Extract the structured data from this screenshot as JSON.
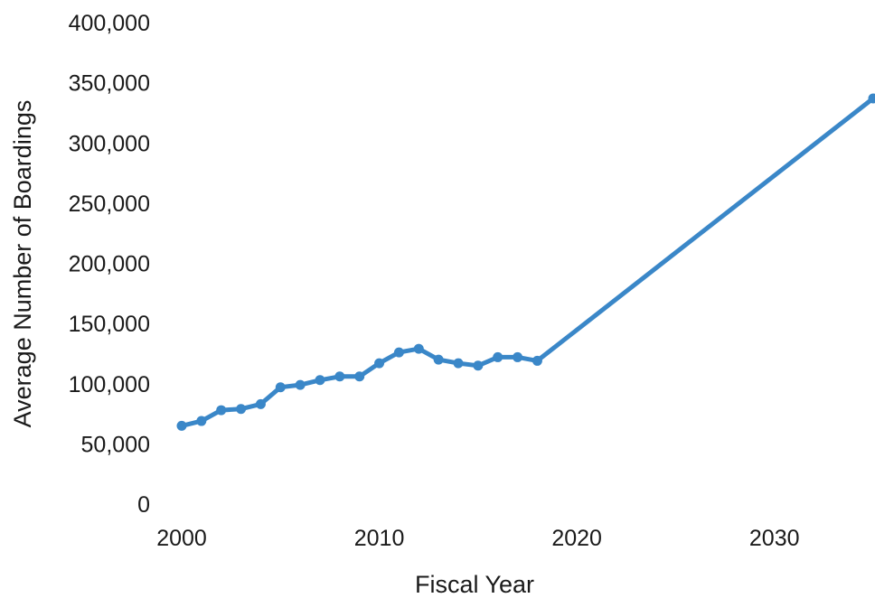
{
  "chart_data": {
    "type": "line",
    "title": "",
    "xlabel": "Fiscal Year",
    "ylabel": "Average Number of Boardings",
    "xlim": [
      2000,
      2035
    ],
    "ylim": [
      0,
      400000
    ],
    "grid": false,
    "legend": "none",
    "line_color": "#3a87c8",
    "x_ticks": [
      2000,
      2010,
      2020,
      2030
    ],
    "x_tick_labels": [
      "2000",
      "2010",
      "2020",
      "2030"
    ],
    "y_ticks": [
      0,
      50000,
      100000,
      150000,
      200000,
      250000,
      300000,
      350000,
      400000
    ],
    "y_tick_labels": [
      "0",
      "50,000",
      "100,000",
      "150,000",
      "200,000",
      "250,000",
      "300,000",
      "350,000",
      "400,000"
    ],
    "series": [
      {
        "x": [
          2000,
          2001,
          2002,
          2003,
          2004,
          2005,
          2006,
          2007,
          2008,
          2009,
          2010,
          2011,
          2012,
          2013,
          2014,
          2015,
          2016,
          2017,
          2018,
          2035
        ],
        "y": [
          65000,
          69000,
          78000,
          79000,
          83000,
          97000,
          99000,
          103000,
          106000,
          106000,
          117000,
          126000,
          129000,
          120000,
          117000,
          115000,
          122000,
          122000,
          119000,
          337000
        ]
      }
    ]
  }
}
